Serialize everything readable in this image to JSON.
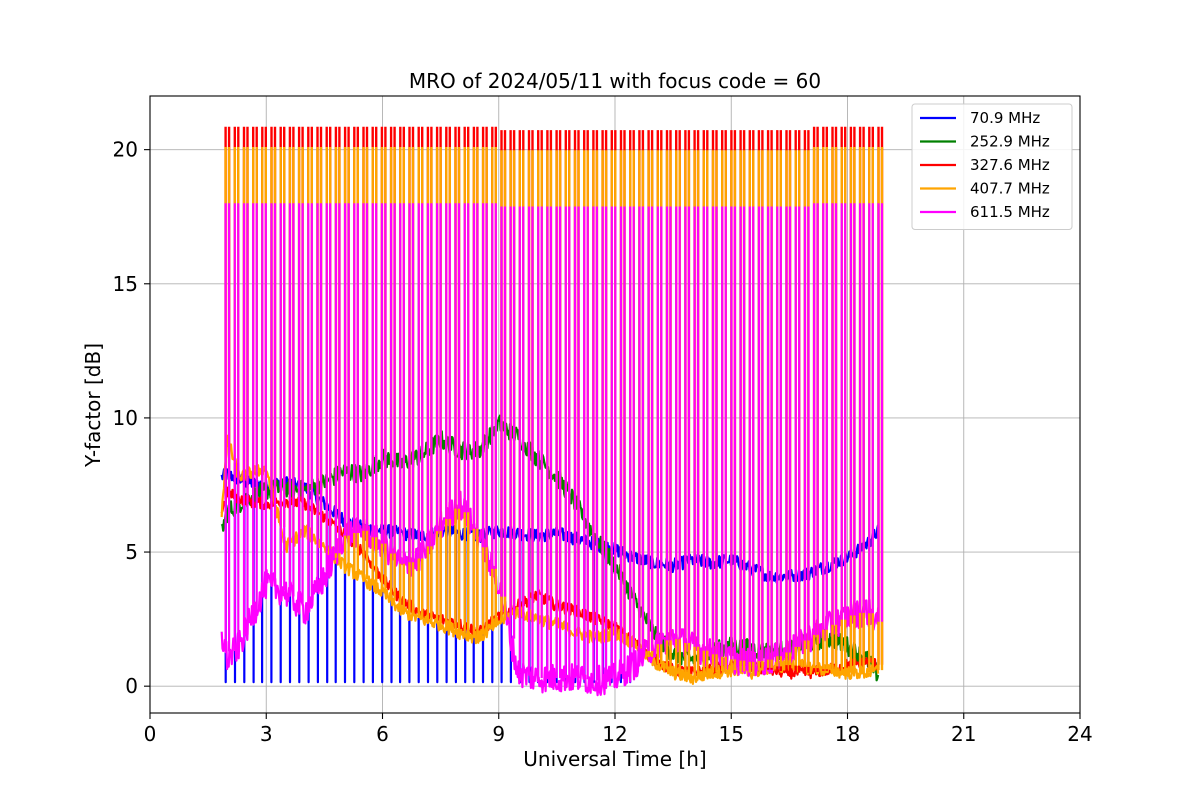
{
  "chart_data": {
    "type": "line",
    "title": "MRO of 2024/05/11 with focus code = 60",
    "xlabel": "Universal Time [h]",
    "ylabel": "Y-factor [dB]",
    "xlim": [
      0,
      24
    ],
    "ylim": [
      -1.0,
      22.0
    ],
    "xticks": [
      0,
      3,
      6,
      9,
      12,
      15,
      18,
      21,
      24
    ],
    "yticks": [
      0,
      5,
      10,
      15,
      20
    ],
    "grid": true,
    "legend_position": "top-right",
    "calibration_spikes": {
      "start_hour": 1.95,
      "end_hour": 18.8,
      "count": 72,
      "top_values": {
        "327.6 MHz": 20.85,
        "407.7 MHz": 20.1,
        "611.5 MHz": 18.0
      }
    },
    "series": [
      {
        "name": "70.9 MHz",
        "color": "#0000ff",
        "x": [
          1.85,
          2.0,
          2.5,
          3.0,
          3.5,
          4.0,
          4.5,
          5.0,
          5.5,
          6.0,
          6.5,
          7.0,
          7.5,
          8.0,
          8.5,
          9.0,
          9.5,
          10.0,
          10.5,
          11.0,
          11.5,
          12.0,
          12.5,
          13.0,
          13.5,
          14.0,
          14.5,
          15.0,
          15.5,
          16.0,
          16.5,
          17.0,
          17.5,
          18.0,
          18.5,
          18.8
        ],
        "values": [
          7.8,
          7.9,
          7.6,
          7.5,
          7.6,
          7.4,
          6.8,
          6.2,
          5.9,
          5.8,
          5.7,
          5.6,
          5.8,
          5.7,
          5.6,
          5.8,
          5.7,
          5.6,
          5.7,
          5.5,
          5.3,
          5.1,
          4.8,
          4.6,
          4.5,
          4.7,
          4.6,
          4.7,
          4.4,
          4.1,
          4.1,
          4.2,
          4.5,
          4.8,
          5.3,
          5.8
        ]
      },
      {
        "name": "252.9 MHz",
        "color": "#008000",
        "x": [
          1.85,
          2.0,
          2.5,
          3.0,
          3.5,
          4.0,
          4.5,
          5.0,
          5.5,
          6.0,
          6.5,
          7.0,
          7.5,
          8.0,
          8.5,
          9.0,
          9.5,
          10.0,
          10.5,
          11.0,
          11.5,
          12.0,
          12.5,
          13.0,
          13.5,
          14.0,
          14.5,
          15.0,
          15.5,
          16.0,
          16.5,
          17.0,
          17.5,
          18.0,
          18.5,
          18.8
        ],
        "values": [
          5.8,
          6.5,
          7.0,
          7.3,
          7.4,
          7.3,
          7.6,
          8.0,
          7.9,
          8.5,
          8.3,
          8.6,
          9.2,
          8.8,
          8.8,
          9.8,
          9.3,
          8.5,
          7.8,
          6.8,
          5.5,
          4.5,
          3.2,
          2.0,
          1.2,
          1.0,
          1.3,
          1.5,
          1.4,
          1.3,
          1.4,
          1.6,
          1.8,
          1.5,
          1.0,
          0.4
        ]
      },
      {
        "name": "327.6 MHz",
        "color": "#ff0000",
        "x": [
          1.85,
          2.0,
          2.5,
          3.0,
          3.5,
          4.0,
          4.5,
          5.0,
          5.5,
          6.0,
          6.5,
          7.0,
          7.5,
          8.0,
          8.5,
          9.0,
          9.5,
          10.0,
          10.5,
          11.0,
          11.5,
          12.0,
          12.5,
          13.0,
          13.5,
          14.0,
          14.5,
          15.0,
          15.5,
          16.0,
          16.5,
          17.0,
          17.5,
          18.0,
          18.5,
          18.8
        ],
        "values": [
          6.5,
          7.2,
          6.9,
          6.8,
          6.9,
          6.8,
          6.3,
          5.7,
          5.0,
          4.0,
          3.2,
          2.7,
          2.5,
          2.3,
          2.0,
          2.6,
          3.0,
          3.4,
          3.0,
          2.8,
          2.5,
          2.2,
          1.6,
          1.0,
          0.6,
          0.5,
          0.6,
          0.8,
          0.7,
          0.6,
          0.5,
          0.5,
          0.6,
          0.8,
          0.9,
          0.8
        ]
      },
      {
        "name": "407.7 MHz",
        "color": "#ffa500",
        "x": [
          1.85,
          2.0,
          2.3,
          2.7,
          3.0,
          3.5,
          4.0,
          4.5,
          5.0,
          5.5,
          6.0,
          6.5,
          7.0,
          7.5,
          8.0,
          8.5,
          9.0,
          9.5,
          10.0,
          10.5,
          11.0,
          11.5,
          12.0,
          12.5,
          13.0,
          13.5,
          14.0,
          14.5,
          15.0,
          15.5,
          16.0,
          16.5,
          17.0,
          17.5,
          18.0,
          18.5,
          18.8
        ],
        "values": [
          6.5,
          9.2,
          7.8,
          8.0,
          8.1,
          5.2,
          5.8,
          5.2,
          4.5,
          4.0,
          3.5,
          2.8,
          2.5,
          2.3,
          2.0,
          1.8,
          2.4,
          2.8,
          2.5,
          2.3,
          2.0,
          1.8,
          2.0,
          1.6,
          0.9,
          0.5,
          0.3,
          0.5,
          0.6,
          0.5,
          0.7,
          0.8,
          0.7,
          0.6,
          0.5,
          0.5,
          0.6
        ]
      },
      {
        "name": "611.5 MHz",
        "color": "#ff00ff",
        "x": [
          1.85,
          2.0,
          2.3,
          2.6,
          3.0,
          3.5,
          4.0,
          4.5,
          5.0,
          5.5,
          6.0,
          6.5,
          7.0,
          7.5,
          8.0,
          8.5,
          9.0,
          9.5,
          10.0,
          10.5,
          11.0,
          11.5,
          12.0,
          12.5,
          13.0,
          13.5,
          14.0,
          14.5,
          15.0,
          15.5,
          16.0,
          16.5,
          17.0,
          17.5,
          18.0,
          18.5,
          18.8
        ],
        "values": [
          1.9,
          1.0,
          1.5,
          2.5,
          3.8,
          3.5,
          2.8,
          4.0,
          5.6,
          5.8,
          5.3,
          4.5,
          4.8,
          6.0,
          6.8,
          5.5,
          3.8,
          0.5,
          0.3,
          0.3,
          0.3,
          0.2,
          0.3,
          0.8,
          1.5,
          1.8,
          1.5,
          1.2,
          1.0,
          0.9,
          1.0,
          1.3,
          1.8,
          2.2,
          2.6,
          2.8,
          2.4
        ]
      }
    ]
  }
}
